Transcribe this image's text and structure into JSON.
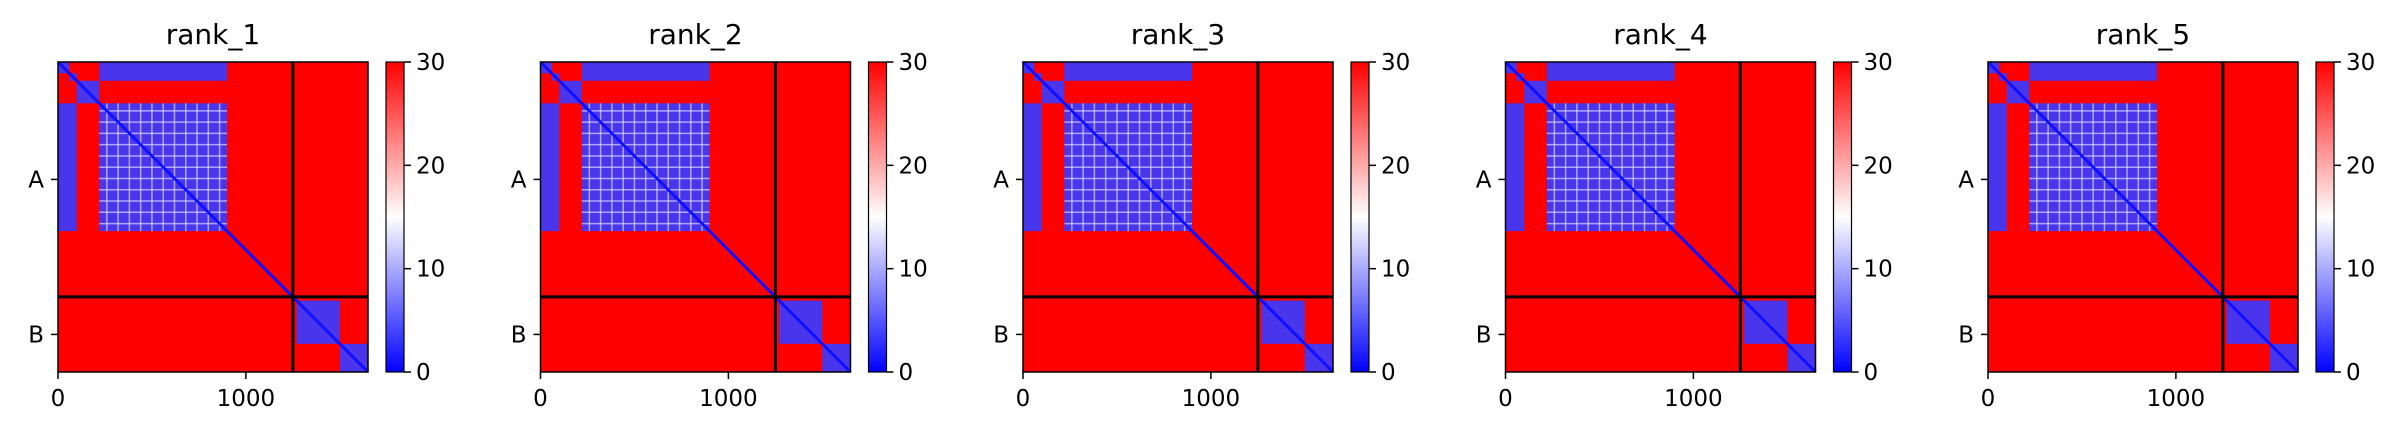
{
  "chart_data": {
    "type": "heatmap",
    "x": {
      "ticks": [
        0,
        1000
      ],
      "range": [
        0,
        1650
      ]
    },
    "chain_boundary": 1250,
    "chains": [
      "A",
      "B"
    ],
    "colorbar": {
      "min": 0,
      "max": 30,
      "ticks": [
        0,
        10,
        20,
        30
      ],
      "colors": [
        "#0000ff",
        "#ffffff",
        "#ff0000"
      ]
    },
    "panels": [
      {
        "title": "rank_1"
      },
      {
        "title": "rank_2"
      },
      {
        "title": "rank_3"
      },
      {
        "title": "rank_4"
      },
      {
        "title": "rank_5"
      }
    ],
    "blue_blocks": [
      [
        0,
        60,
        0,
        60
      ],
      [
        60,
        100,
        60,
        100
      ],
      [
        220,
        900,
        220,
        900
      ],
      [
        100,
        220,
        100,
        220
      ],
      [
        220,
        900,
        0,
        100
      ],
      [
        0,
        100,
        220,
        900
      ],
      [
        1270,
        1500,
        1270,
        1500
      ],
      [
        1500,
        1650,
        1500,
        1650
      ],
      [
        1250,
        1270,
        1250,
        1270
      ]
    ]
  }
}
